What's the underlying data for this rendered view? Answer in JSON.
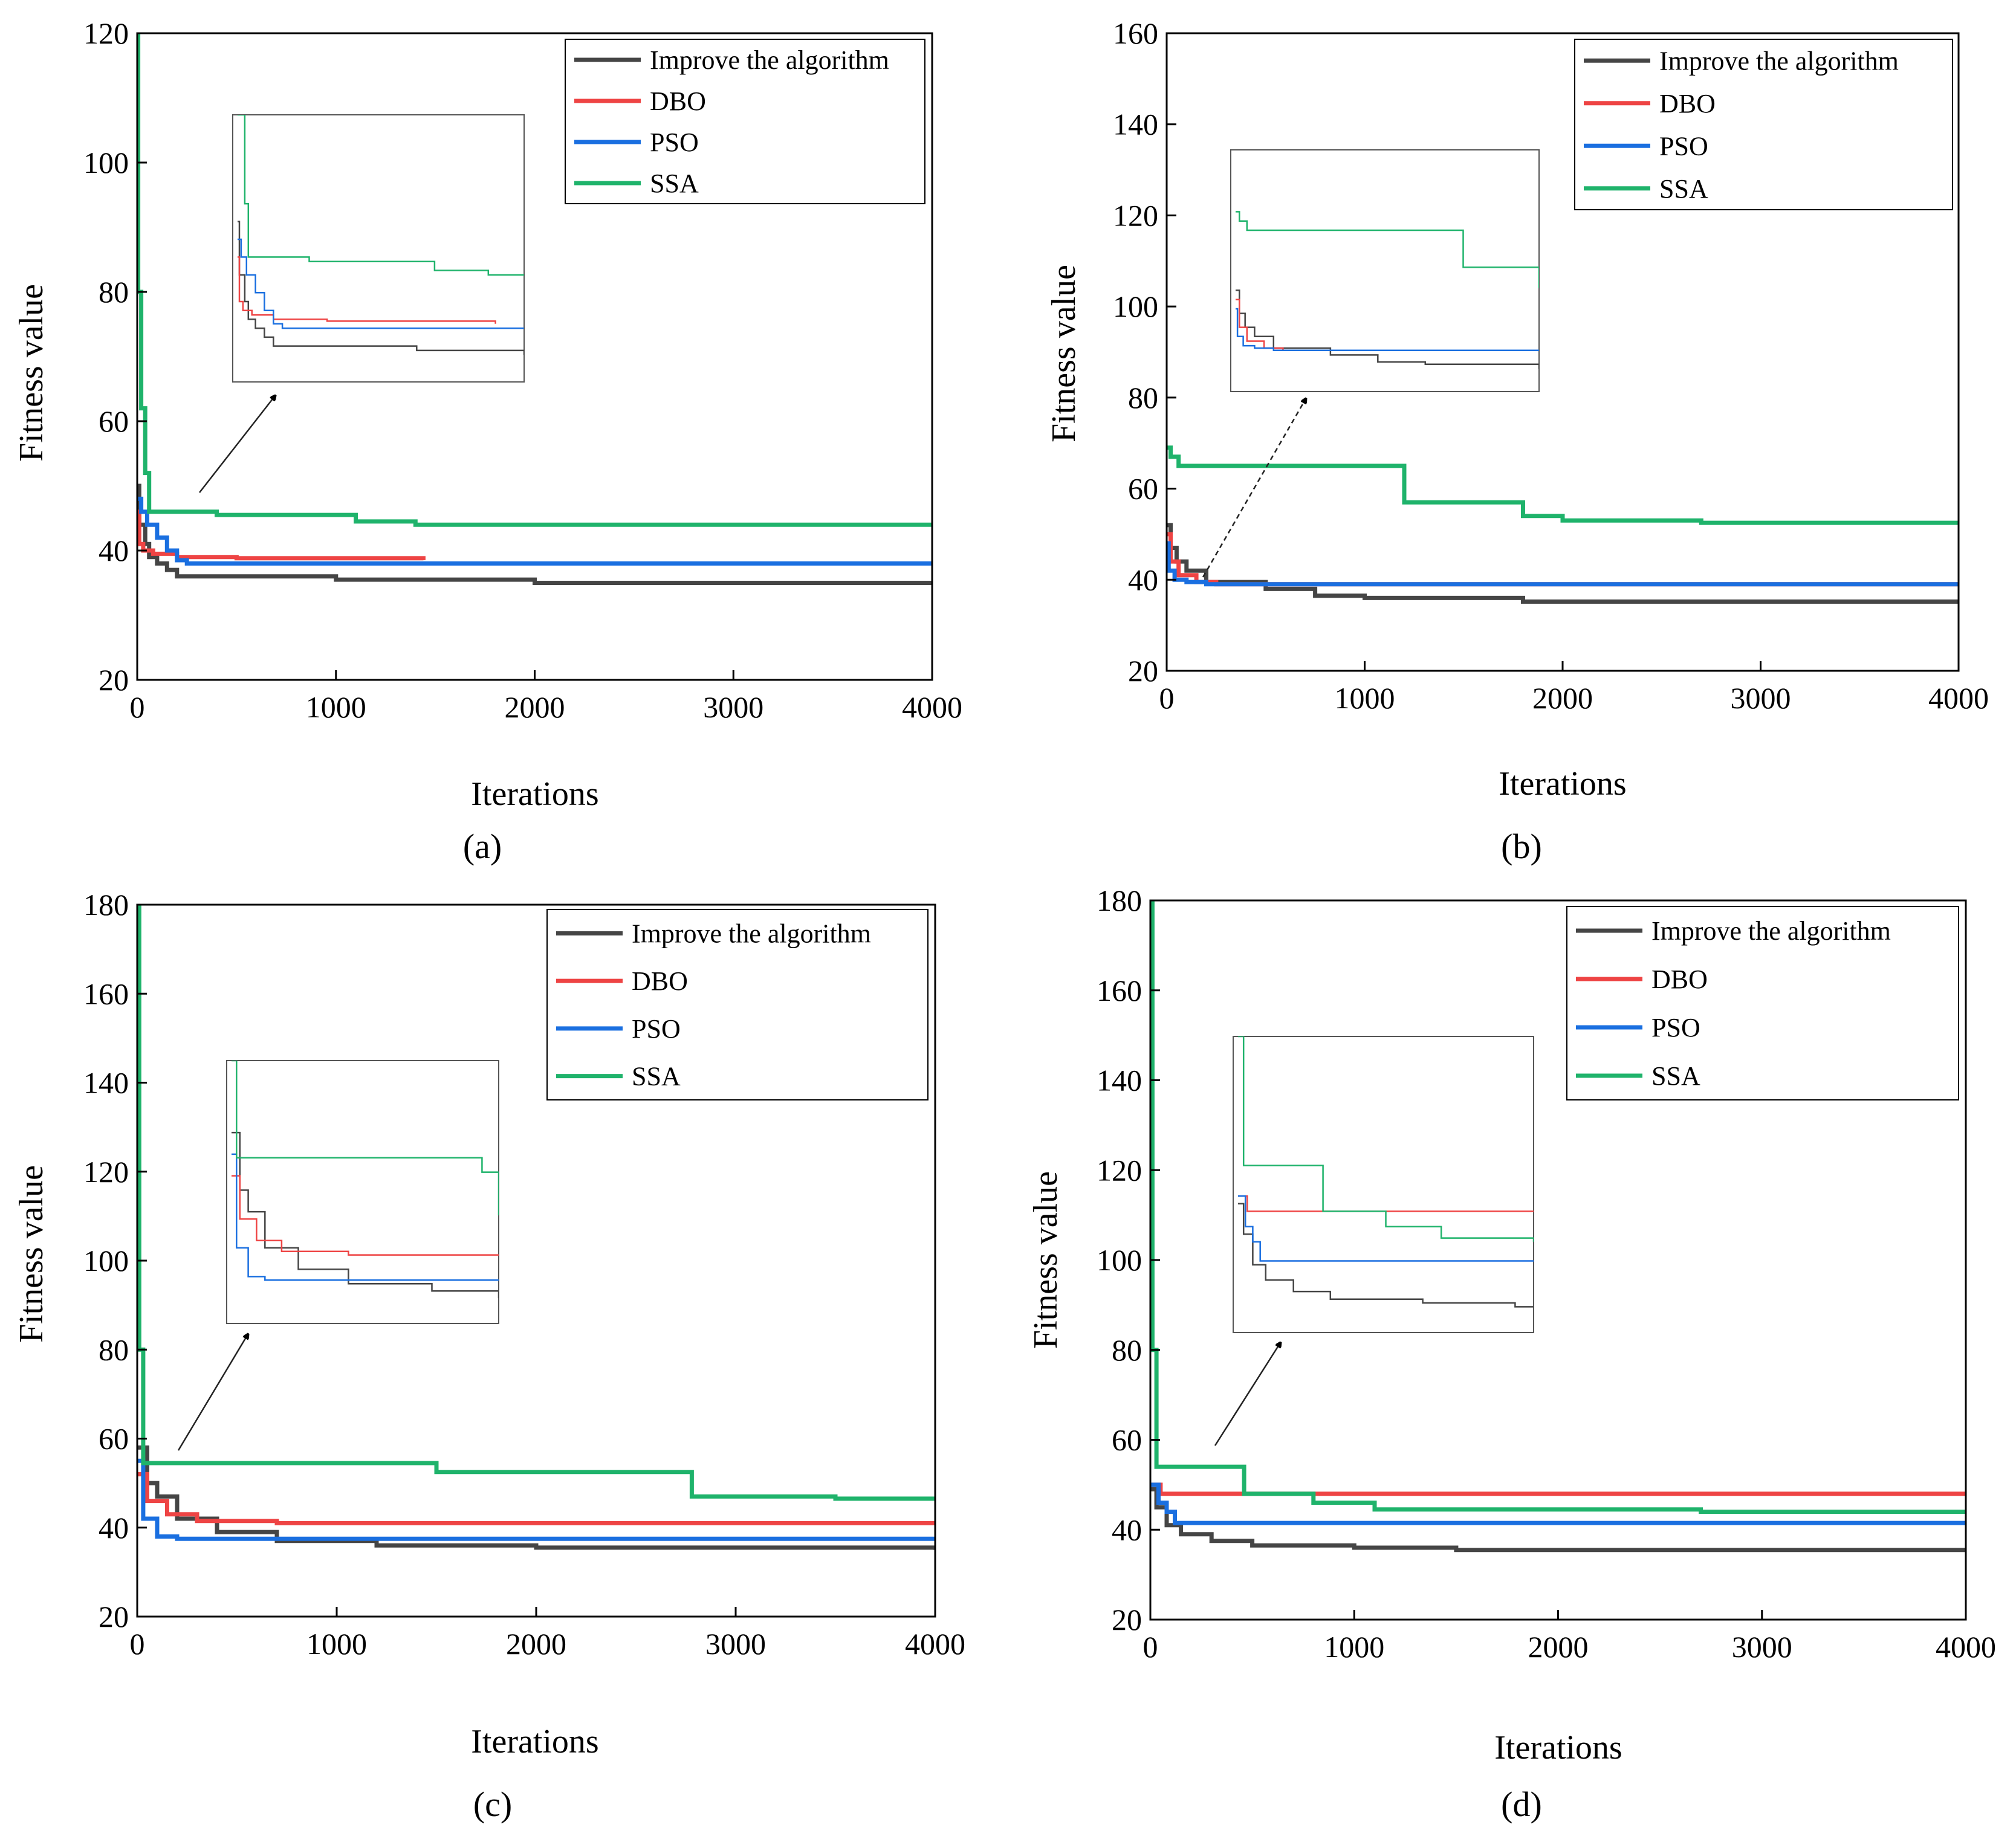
{
  "colors": {
    "improve": "#454545",
    "dbo": "#ee4444",
    "pso": "#1a6fe0",
    "ssa": "#1fb36b",
    "frame": "#000000",
    "inset_frame": "#555555"
  },
  "legend_labels": [
    "Improve the algorithm",
    "DBO",
    "PSO",
    "SSA"
  ],
  "chart_data": [
    {
      "panel": "(a)",
      "type": "line",
      "xlabel": "Iterations",
      "ylabel": "Fitness value",
      "xlim": [
        0,
        4000
      ],
      "ylim": [
        20,
        120
      ],
      "xticks": [
        "0",
        "1000",
        "2000",
        "3000",
        "4000"
      ],
      "yticks": [
        "20",
        "40",
        "60",
        "80",
        "100",
        "120"
      ],
      "legend": "top-right",
      "grid": false,
      "inset": true,
      "series": [
        {
          "name": "Improve the algorithm",
          "x": [
            0,
            10,
            40,
            60,
            100,
            150,
            200,
            1000,
            2000,
            4000
          ],
          "y": [
            50,
            44,
            41,
            39,
            38,
            37,
            36,
            35.5,
            35,
            35
          ]
        },
        {
          "name": "DBO",
          "x": [
            0,
            10,
            30,
            80,
            200,
            500,
            1440
          ],
          "y": [
            46,
            41,
            40,
            39.5,
            39,
            38.8,
            38.5
          ]
        },
        {
          "name": "PSO",
          "x": [
            0,
            20,
            50,
            100,
            150,
            200,
            250,
            4000
          ],
          "y": [
            48,
            46,
            44,
            42,
            40,
            38.5,
            38,
            38
          ]
        },
        {
          "name": "SSA",
          "x": [
            0,
            5,
            20,
            40,
            60,
            400,
            1100,
            1400,
            4000
          ],
          "y": [
            120,
            80,
            62,
            52,
            46,
            45.5,
            44.5,
            44,
            44
          ]
        }
      ]
    },
    {
      "panel": "(b)",
      "type": "line",
      "xlabel": "Iterations",
      "ylabel": "Fitness value",
      "xlim": [
        0,
        4000
      ],
      "ylim": [
        20,
        160
      ],
      "xticks": [
        "0",
        "1000",
        "2000",
        "3000",
        "4000"
      ],
      "yticks": [
        "20",
        "40",
        "60",
        "80",
        "100",
        "120",
        "140",
        "160"
      ],
      "legend": "top-right",
      "grid": false,
      "inset": true,
      "series": [
        {
          "name": "Improve the algorithm",
          "x": [
            0,
            20,
            50,
            100,
            200,
            500,
            750,
            1000,
            1800,
            4000
          ],
          "y": [
            52,
            47,
            44,
            42,
            39.5,
            38,
            36.5,
            36,
            35.2,
            35
          ]
        },
        {
          "name": "DBO",
          "x": [
            0,
            20,
            60,
            150,
            250,
            4000
          ],
          "y": [
            50,
            44,
            41,
            39.5,
            39,
            39
          ]
        },
        {
          "name": "PSO",
          "x": [
            0,
            10,
            40,
            100,
            200,
            4000
          ],
          "y": [
            48,
            42,
            40,
            39.5,
            39,
            39
          ]
        },
        {
          "name": "SSA",
          "x": [
            0,
            20,
            60,
            1160,
            1200,
            1800,
            2000,
            2700,
            4000
          ],
          "y": [
            69,
            67,
            65,
            65,
            57,
            54,
            53,
            52.5,
            52.5
          ]
        }
      ]
    },
    {
      "panel": "(c)",
      "type": "line",
      "xlabel": "Iterations",
      "ylabel": "Fitness value",
      "xlim": [
        0,
        4000
      ],
      "ylim": [
        20,
        180
      ],
      "xticks": [
        "0",
        "1000",
        "2000",
        "3000",
        "4000"
      ],
      "yticks": [
        "20",
        "40",
        "60",
        "80",
        "100",
        "120",
        "140",
        "160",
        "180"
      ],
      "legend": "top-right",
      "grid": false,
      "inset": true,
      "series": [
        {
          "name": "Improve the algorithm",
          "x": [
            0,
            50,
            100,
            200,
            400,
            700,
            1200,
            2000,
            4000
          ],
          "y": [
            58,
            50,
            47,
            42,
            39,
            37,
            36,
            35.5,
            35
          ]
        },
        {
          "name": "DBO",
          "x": [
            0,
            50,
            150,
            300,
            700,
            4000
          ],
          "y": [
            52,
            46,
            43,
            41.5,
            41,
            41
          ]
        },
        {
          "name": "PSO",
          "x": [
            0,
            30,
            100,
            200,
            1000,
            4000
          ],
          "y": [
            55,
            42,
            38,
            37.5,
            37.5,
            37.5
          ]
        },
        {
          "name": "SSA",
          "x": [
            0,
            10,
            30,
            1250,
            1500,
            2740,
            2780,
            3500,
            4000
          ],
          "y": [
            180,
            80,
            54.5,
            54.5,
            52.5,
            52.5,
            47,
            46.5,
            46.5
          ]
        }
      ]
    },
    {
      "panel": "(d)",
      "type": "line",
      "xlabel": "Iterations",
      "ylabel": "Fitness value",
      "xlim": [
        0,
        4000
      ],
      "ylim": [
        20,
        180
      ],
      "xticks": [
        "0",
        "1000",
        "2000",
        "3000",
        "4000"
      ],
      "yticks": [
        "20",
        "40",
        "60",
        "80",
        "100",
        "120",
        "140",
        "160",
        "180"
      ],
      "legend": "top-right",
      "grid": false,
      "inset": true,
      "series": [
        {
          "name": "Improve the algorithm",
          "x": [
            0,
            30,
            80,
            150,
            300,
            500,
            1000,
            1500,
            4000
          ],
          "y": [
            49,
            45,
            41,
            39,
            37.5,
            36.5,
            36,
            35.5,
            35.5
          ]
        },
        {
          "name": "DBO",
          "x": [
            0,
            50,
            4000
          ],
          "y": [
            50,
            48,
            48
          ]
        },
        {
          "name": "PSO",
          "x": [
            0,
            40,
            80,
            120,
            4000
          ],
          "y": [
            50,
            46,
            44,
            41.5,
            41.5
          ]
        },
        {
          "name": "SSA",
          "x": [
            0,
            10,
            30,
            430,
            460,
            800,
            1100,
            2700,
            4000
          ],
          "y": [
            180,
            80,
            54,
            54,
            48,
            46,
            44.5,
            44,
            44
          ]
        }
      ]
    }
  ]
}
